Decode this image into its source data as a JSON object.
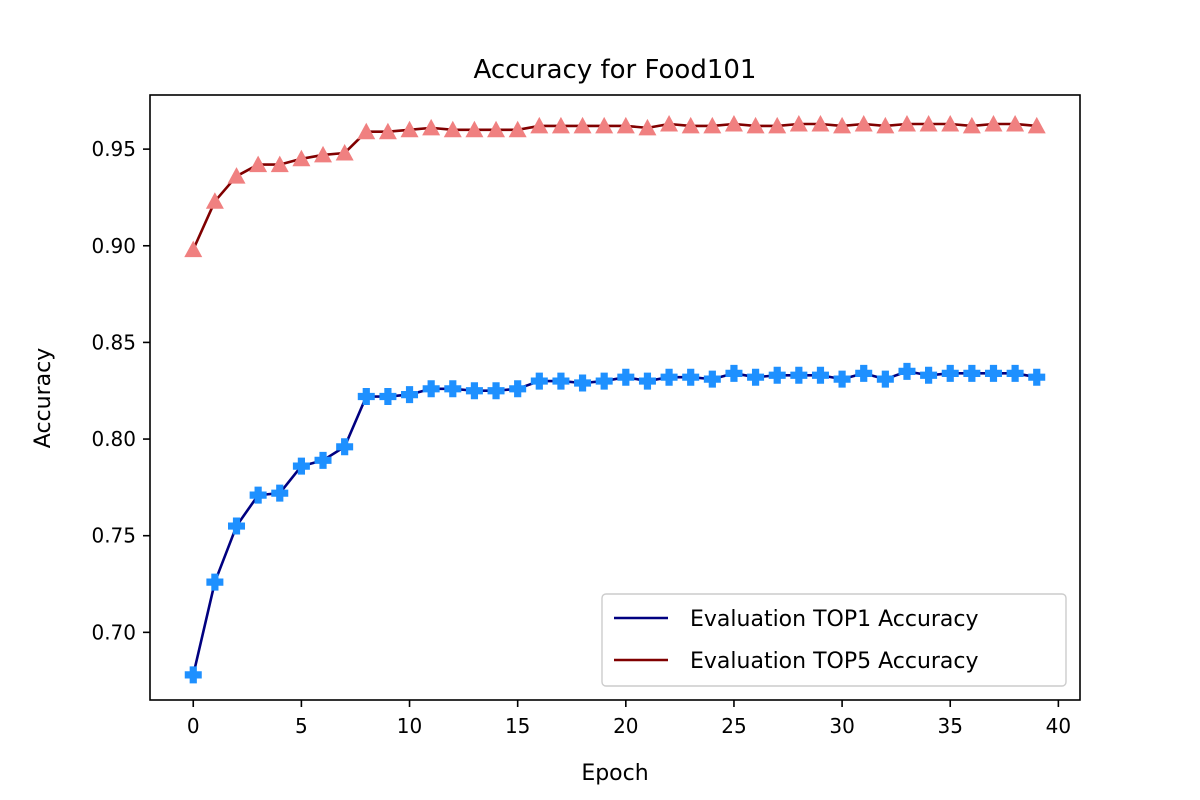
{
  "chart_data": {
    "type": "line",
    "title": "Accuracy for Food101",
    "xlabel": "Epoch",
    "ylabel": "Accuracy",
    "xlim": [
      -2,
      41
    ],
    "ylim": [
      0.665,
      0.978
    ],
    "xticks": [
      0,
      5,
      10,
      15,
      20,
      25,
      30,
      35,
      40
    ],
    "xtick_labels": [
      "0",
      "5",
      "10",
      "15",
      "20",
      "25",
      "30",
      "35",
      "40"
    ],
    "yticks": [
      0.7,
      0.75,
      0.8,
      0.85,
      0.9,
      0.95
    ],
    "ytick_labels": [
      "0.70",
      "0.75",
      "0.80",
      "0.85",
      "0.90",
      "0.95"
    ],
    "grid": false,
    "legend_position": "lower-right",
    "x": [
      0,
      1,
      2,
      3,
      4,
      5,
      6,
      7,
      8,
      9,
      10,
      11,
      12,
      13,
      14,
      15,
      16,
      17,
      18,
      19,
      20,
      21,
      22,
      23,
      24,
      25,
      26,
      27,
      28,
      29,
      30,
      31,
      32,
      33,
      34,
      35,
      36,
      37,
      38,
      39
    ],
    "series": [
      {
        "name": "Evaluation TOP1 Accuracy",
        "line_color": "#000080",
        "marker": "plus",
        "marker_color": "#1e90ff",
        "values": [
          0.678,
          0.726,
          0.755,
          0.771,
          0.772,
          0.786,
          0.789,
          0.796,
          0.822,
          0.822,
          0.823,
          0.826,
          0.826,
          0.825,
          0.825,
          0.826,
          0.83,
          0.83,
          0.829,
          0.83,
          0.832,
          0.83,
          0.832,
          0.832,
          0.831,
          0.834,
          0.832,
          0.833,
          0.833,
          0.833,
          0.831,
          0.834,
          0.831,
          0.835,
          0.833,
          0.834,
          0.834,
          0.834,
          0.834,
          0.832
        ]
      },
      {
        "name": "Evaluation TOP5 Accuracy",
        "line_color": "#800000",
        "marker": "triangle",
        "marker_color": "#f08080",
        "values": [
          0.898,
          0.923,
          0.936,
          0.942,
          0.942,
          0.945,
          0.947,
          0.948,
          0.959,
          0.959,
          0.96,
          0.961,
          0.96,
          0.96,
          0.96,
          0.96,
          0.962,
          0.962,
          0.962,
          0.962,
          0.962,
          0.961,
          0.963,
          0.962,
          0.962,
          0.963,
          0.962,
          0.962,
          0.963,
          0.963,
          0.962,
          0.963,
          0.962,
          0.963,
          0.963,
          0.963,
          0.962,
          0.963,
          0.963,
          0.962
        ]
      }
    ]
  }
}
